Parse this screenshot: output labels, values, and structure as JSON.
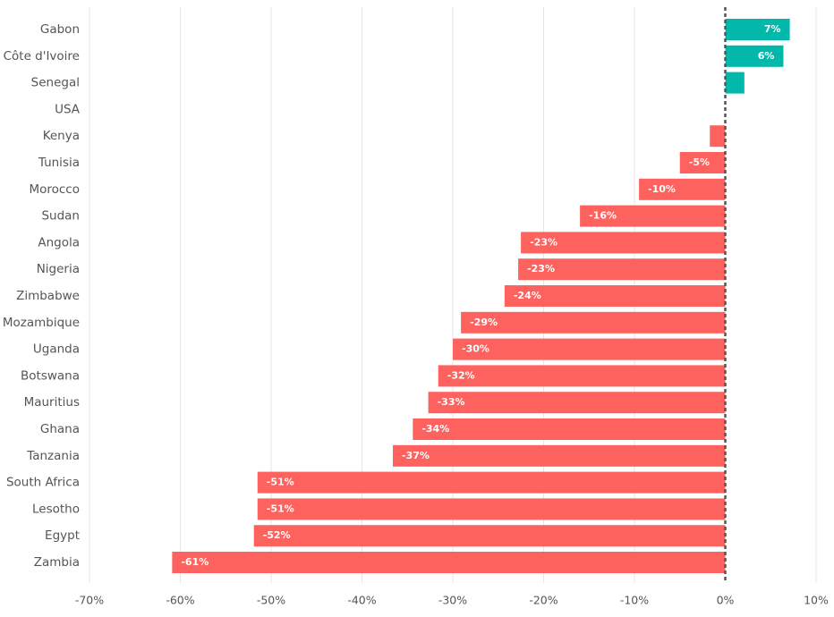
{
  "chart_data": {
    "type": "bar",
    "orientation": "horizontal",
    "categories": [
      "Gabon",
      "Côte d'Ivoire",
      "Senegal",
      "USA",
      "Kenya",
      "Tunisia",
      "Morocco",
      "Sudan",
      "Angola",
      "Nigeria",
      "Zimbabwe",
      "Mozambique",
      "Uganda",
      "Botswana",
      "Mauritius",
      "Ghana",
      "Tanzania",
      "South Africa",
      "Lesotho",
      "Egypt",
      "Zambia"
    ],
    "values": [
      7.1,
      6.4,
      2.1,
      0,
      -1.7,
      -5,
      -9.5,
      -16,
      -22.5,
      -22.8,
      -24.3,
      -29.1,
      -30,
      -31.6,
      -32.7,
      -34.4,
      -36.6,
      -51.5,
      -51.5,
      -51.9,
      -60.9
    ],
    "data_labels": [
      "7%",
      "6%",
      "",
      "",
      "",
      "-5%",
      "-10%",
      "-16%",
      "-23%",
      "-23%",
      "-24%",
      "-29%",
      "-30%",
      "-32%",
      "-33%",
      "-34%",
      "-37%",
      "-51%",
      "-51%",
      "-52%",
      "-61%"
    ],
    "xlim": [
      -70,
      10
    ],
    "x_ticks": [
      -70,
      -60,
      -50,
      -40,
      -30,
      -20,
      -10,
      0,
      10
    ],
    "x_tick_labels": [
      "-70%",
      "-60%",
      "-50%",
      "-40%",
      "-30%",
      "-20%",
      "-10%",
      "0%",
      "10%"
    ],
    "grid": true,
    "colors": {
      "positive": "#01b8aa",
      "negative": "#fd625e",
      "zero_line": "#555555",
      "grid": "#e6e6e6"
    }
  }
}
